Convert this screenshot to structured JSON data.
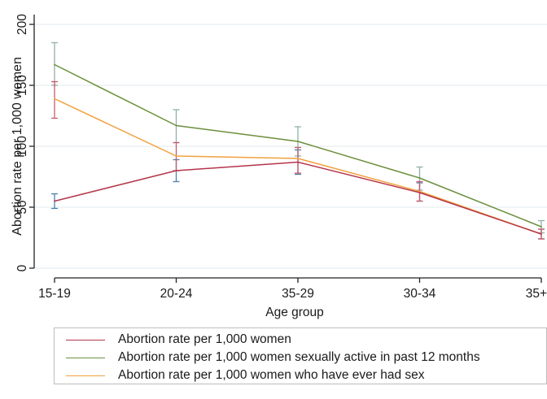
{
  "colors": {
    "women": "#b5354b",
    "active": "#6b8f3c",
    "ever_sex": "#f2a13d",
    "ci_women": "#4f7fb0",
    "ci_active": "#90b0a8",
    "ci_ever_sex": "#c85a6a",
    "grid": "#e8eef2",
    "axis": "#222222"
  },
  "chart_data": {
    "type": "line",
    "title": "",
    "xlabel": "Age group",
    "ylabel": "Abortion rate per 1,000 women",
    "categories": [
      "15-19",
      "20-24",
      "35-29",
      "30-34",
      "35+"
    ],
    "ylim": [
      0,
      200
    ],
    "yticks": [
      0,
      50,
      100,
      150,
      200
    ],
    "grid": true,
    "legend_placement": "bottom",
    "series": [
      {
        "name": "Abortion rate per 1,000 women",
        "color_key": "women",
        "ci_color_key": "ci_women",
        "values": [
          55,
          80,
          87,
          62,
          28
        ],
        "ci_low": [
          49,
          71,
          77,
          55,
          24
        ],
        "ci_high": [
          61,
          89,
          97,
          70,
          32
        ]
      },
      {
        "name": "Abortion rate per 1,000 women sexually active in past 12 months",
        "color_key": "active",
        "ci_color_key": "ci_active",
        "values": [
          167,
          117,
          104,
          74,
          34
        ],
        "ci_low": [
          150,
          103,
          92,
          64,
          29
        ],
        "ci_high": [
          185,
          130,
          116,
          83,
          39
        ]
      },
      {
        "name": "Abortion rate per 1,000 women who have ever had sex",
        "color_key": "ever_sex",
        "ci_color_key": "ci_ever_sex",
        "values": [
          139,
          92,
          90,
          63,
          28
        ],
        "ci_low": [
          123,
          80,
          78,
          55,
          24
        ],
        "ci_high": [
          153,
          103,
          99,
          71,
          32
        ]
      }
    ]
  }
}
